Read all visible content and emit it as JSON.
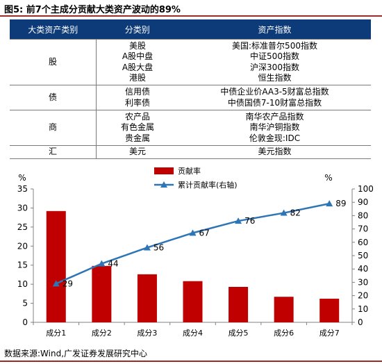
{
  "figure_title": "图5:  前7个主成分贡献大类资产波动的89%",
  "table": {
    "headers": [
      "大类资产类别",
      "分类别",
      "资产指数"
    ],
    "groups": [
      {
        "category": "股",
        "subs": [
          "美股",
          "A股中盘",
          "A股大盘",
          "港股"
        ],
        "indices": [
          "美国:标准普尔500指数",
          "中证500指数",
          "沪深300指数",
          "恒生指数"
        ]
      },
      {
        "category": "债",
        "subs": [
          "信用债",
          "利率债"
        ],
        "indices": [
          "中债企业价AA3-5财富总指数",
          "中债国债7-10财富总指数"
        ]
      },
      {
        "category": "商",
        "subs": [
          "农产品",
          "有色金属",
          "贵金属"
        ],
        "indices": [
          "南华农产品指数",
          "南华沪铜指数",
          "伦敦金现:IDC"
        ]
      },
      {
        "category": "汇",
        "subs": [
          "美元"
        ],
        "indices": [
          "美元指数"
        ]
      }
    ]
  },
  "chart_data": {
    "type": "bar+line",
    "categories": [
      "成分1",
      "成分2",
      "成分3",
      "成分4",
      "成分5",
      "成分6",
      "成分7"
    ],
    "series": [
      {
        "name": "贡献率",
        "type": "bar",
        "axis": "left",
        "color": "#c00000",
        "values": [
          29.2,
          14.8,
          12.6,
          10.8,
          9.3,
          6.7,
          6.2
        ]
      },
      {
        "name": "累计贡献率(右轴)",
        "type": "line",
        "axis": "right",
        "color": "#2e75b6",
        "values": [
          29,
          44,
          56,
          67,
          76,
          82,
          89
        ],
        "labels": [
          "29",
          "44",
          "56",
          "67",
          "76",
          "82",
          "89"
        ]
      }
    ],
    "y_left": {
      "unit": "%",
      "ylim": [
        0,
        35
      ],
      "ticks": [
        0,
        5,
        10,
        15,
        20,
        25,
        30,
        35
      ]
    },
    "y_right": {
      "unit": "%",
      "ylim": [
        0,
        100
      ],
      "ticks": [
        0,
        10,
        20,
        30,
        40,
        50,
        60,
        70,
        80,
        90,
        100
      ]
    },
    "legend_position": "top-center",
    "grid": false
  },
  "source": "数据来源:Wind,广发证券发展研究中心"
}
